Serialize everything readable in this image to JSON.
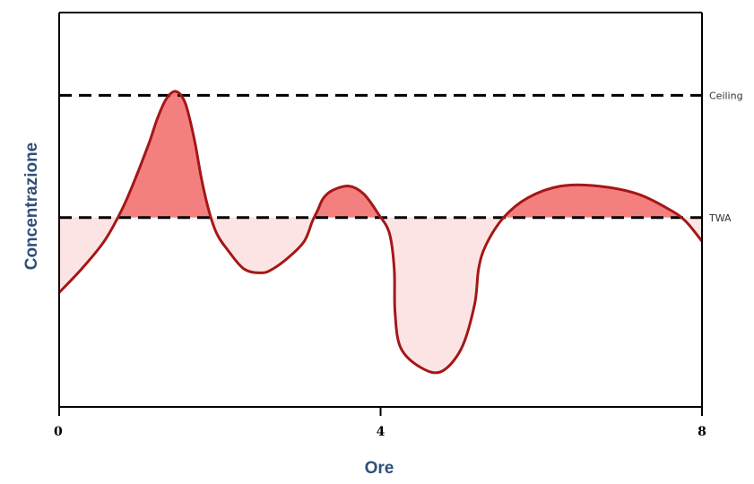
{
  "chart_data": {
    "type": "area",
    "title": "",
    "xlabel": "Ore",
    "ylabel": "Concentrazione",
    "xlim": [
      0,
      8
    ],
    "ylim": [
      0,
      100
    ],
    "x_ticks": [
      "0",
      "4",
      "8"
    ],
    "x_tick_values": [
      0,
      4,
      8
    ],
    "grid": false,
    "legend": "none",
    "reference_lines": [
      {
        "label": "Ceiling",
        "value": 79
      },
      {
        "label": "TWA",
        "value": 48
      }
    ],
    "series": [
      {
        "x": [
          0,
          0.28,
          0.56,
          0.78,
          0.95,
          1.12,
          1.22,
          1.33,
          1.45,
          1.57,
          1.68,
          1.77,
          1.86,
          1.96,
          2.09,
          2.3,
          2.52,
          2.66,
          2.86,
          3.05,
          3.15,
          3.22,
          3.29,
          3.41,
          3.61,
          3.79,
          3.97,
          4.11,
          4.17,
          4.18,
          4.25,
          4.5,
          4.76,
          5.01,
          5.17,
          5.22,
          5.31,
          5.53,
          5.83,
          6.24,
          6.71,
          7.2,
          7.6,
          7.8,
          8.0
        ],
        "y": [
          29,
          35,
          42,
          50,
          58,
          67,
          73,
          78,
          80,
          77,
          68,
          58,
          50,
          44,
          40,
          35,
          34,
          35,
          38,
          42,
          47,
          50,
          53,
          55,
          56,
          54,
          49,
          44,
          35,
          24,
          15,
          10,
          9,
          15,
          26,
          35,
          41,
          48,
          53,
          56,
          56,
          54,
          50,
          47,
          42
        ]
      }
    ],
    "colors": {
      "curve": "#a41717",
      "above": "#f47f7f",
      "below": "#fde4e4"
    }
  }
}
